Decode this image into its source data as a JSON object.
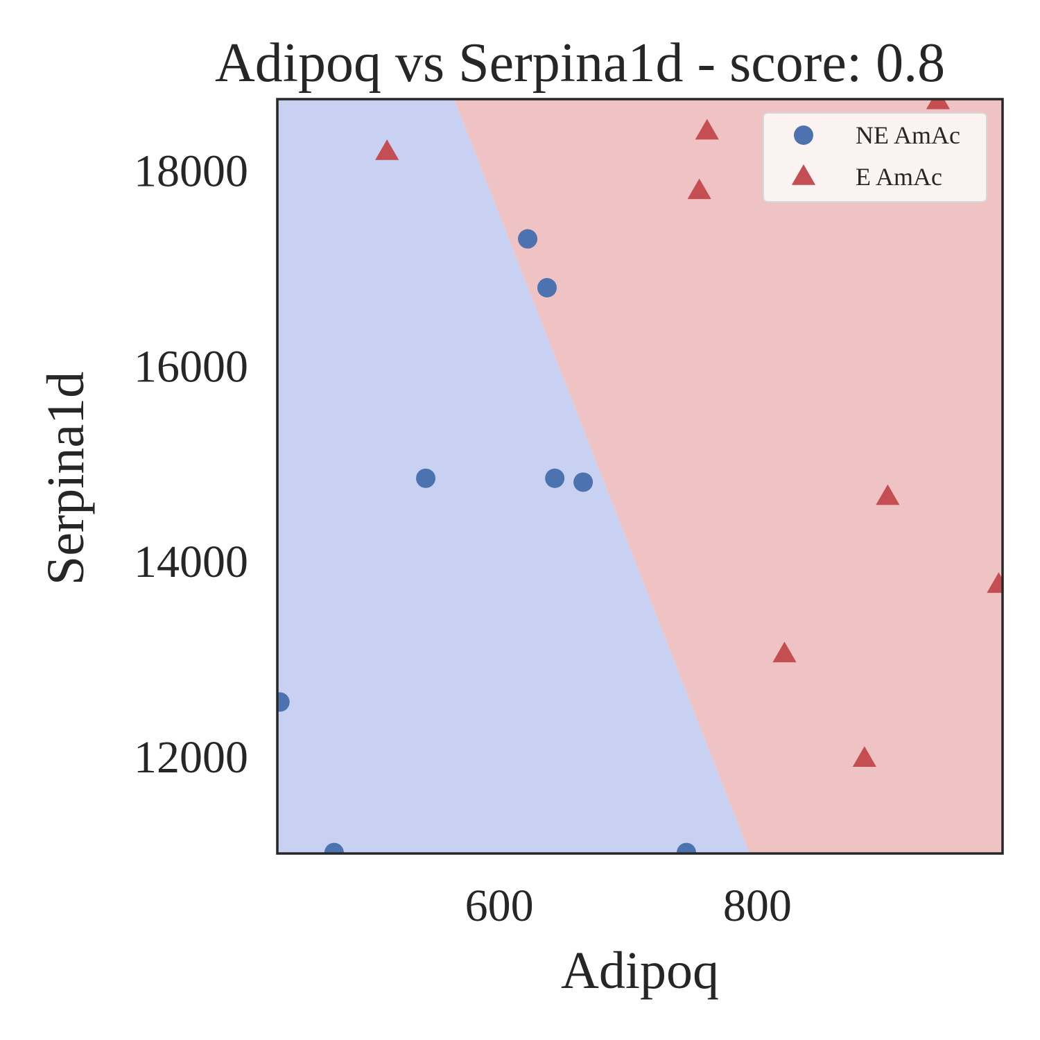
{
  "chart_data": {
    "type": "scatter",
    "title": "Adipoq vs Serpina1d - score: 0.8",
    "xlabel": "Adipoq",
    "ylabel": "Serpina1d",
    "xlim": [
      428,
      990
    ],
    "ylim": [
      11000,
      18720
    ],
    "x_ticks": [
      600,
      800
    ],
    "y_ticks": [
      12000,
      14000,
      16000,
      18000
    ],
    "grid": false,
    "legend_position": "upper right",
    "decision_boundary": {
      "points": [
        [
          565,
          18720
        ],
        [
          794,
          11000
        ]
      ],
      "region_colors": {
        "NE AmAc": "#c8d1f2",
        "E AmAc": "#efc3c3"
      }
    },
    "series": [
      {
        "name": "NE AmAc",
        "marker": "circle",
        "color": "#4c72b0",
        "points": [
          [
            622,
            17290
          ],
          [
            637,
            16790
          ],
          [
            543,
            14840
          ],
          [
            643,
            14840
          ],
          [
            665,
            14800
          ],
          [
            430,
            12550
          ],
          [
            472,
            11010
          ],
          [
            745,
            11010
          ]
        ]
      },
      {
        "name": "E AmAc",
        "marker": "triangle",
        "color": "#c44e52",
        "points": [
          [
            513,
            18180
          ],
          [
            761,
            18390
          ],
          [
            755,
            17780
          ],
          [
            940,
            18700
          ],
          [
            901,
            14650
          ],
          [
            821,
            13040
          ],
          [
            883,
            11970
          ],
          [
            987,
            13750
          ]
        ]
      }
    ]
  }
}
